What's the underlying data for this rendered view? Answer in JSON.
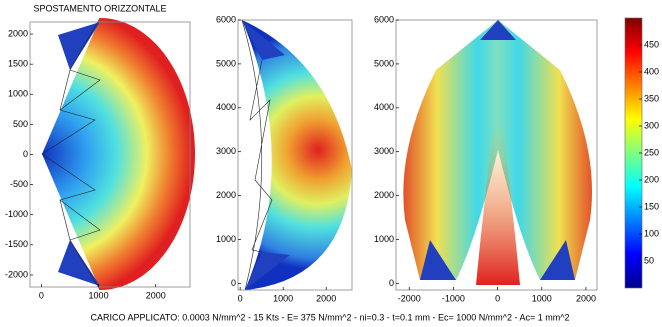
{
  "chart_data": [
    {
      "type": "contour",
      "title": "SPOSTAMENTO ORIZZONTALE",
      "xlim": [
        -200,
        2600
      ],
      "xticks": [
        0,
        1000,
        2000
      ],
      "ylim": [
        -2200,
        2200
      ],
      "yticks": [
        -2000,
        -1500,
        -1000,
        -500,
        0,
        500,
        1000,
        1500,
        2000
      ]
    },
    {
      "type": "contour",
      "xlim": [
        -50,
        2600
      ],
      "xticks": [
        0,
        1000,
        2000
      ],
      "ylim": [
        -150,
        6000
      ],
      "yticks": [
        0,
        1000,
        2000,
        3000,
        4000,
        5000,
        6000
      ]
    },
    {
      "type": "contour",
      "xlim": [
        -2300,
        2250
      ],
      "xticks": [
        -2000,
        -1000,
        0,
        1000,
        2000
      ],
      "ylim": [
        -150,
        6000
      ],
      "yticks": [
        0,
        1000,
        2000,
        3000,
        4000,
        5000,
        6000
      ]
    },
    {
      "type": "colorbar",
      "ylim": [
        0,
        500
      ],
      "yticks": [
        50,
        100,
        150,
        200,
        250,
        300,
        350,
        400,
        450
      ]
    }
  ],
  "footer": "CARICO APPLICATO: 0.0003 N/mm^2 - 15 Kts  -  E= 375 N/mm^2  -  ni=0.3  -  t=0.1 mm  -  Ec= 1000 N/mm^2  -  Ac= 1 mm^2"
}
